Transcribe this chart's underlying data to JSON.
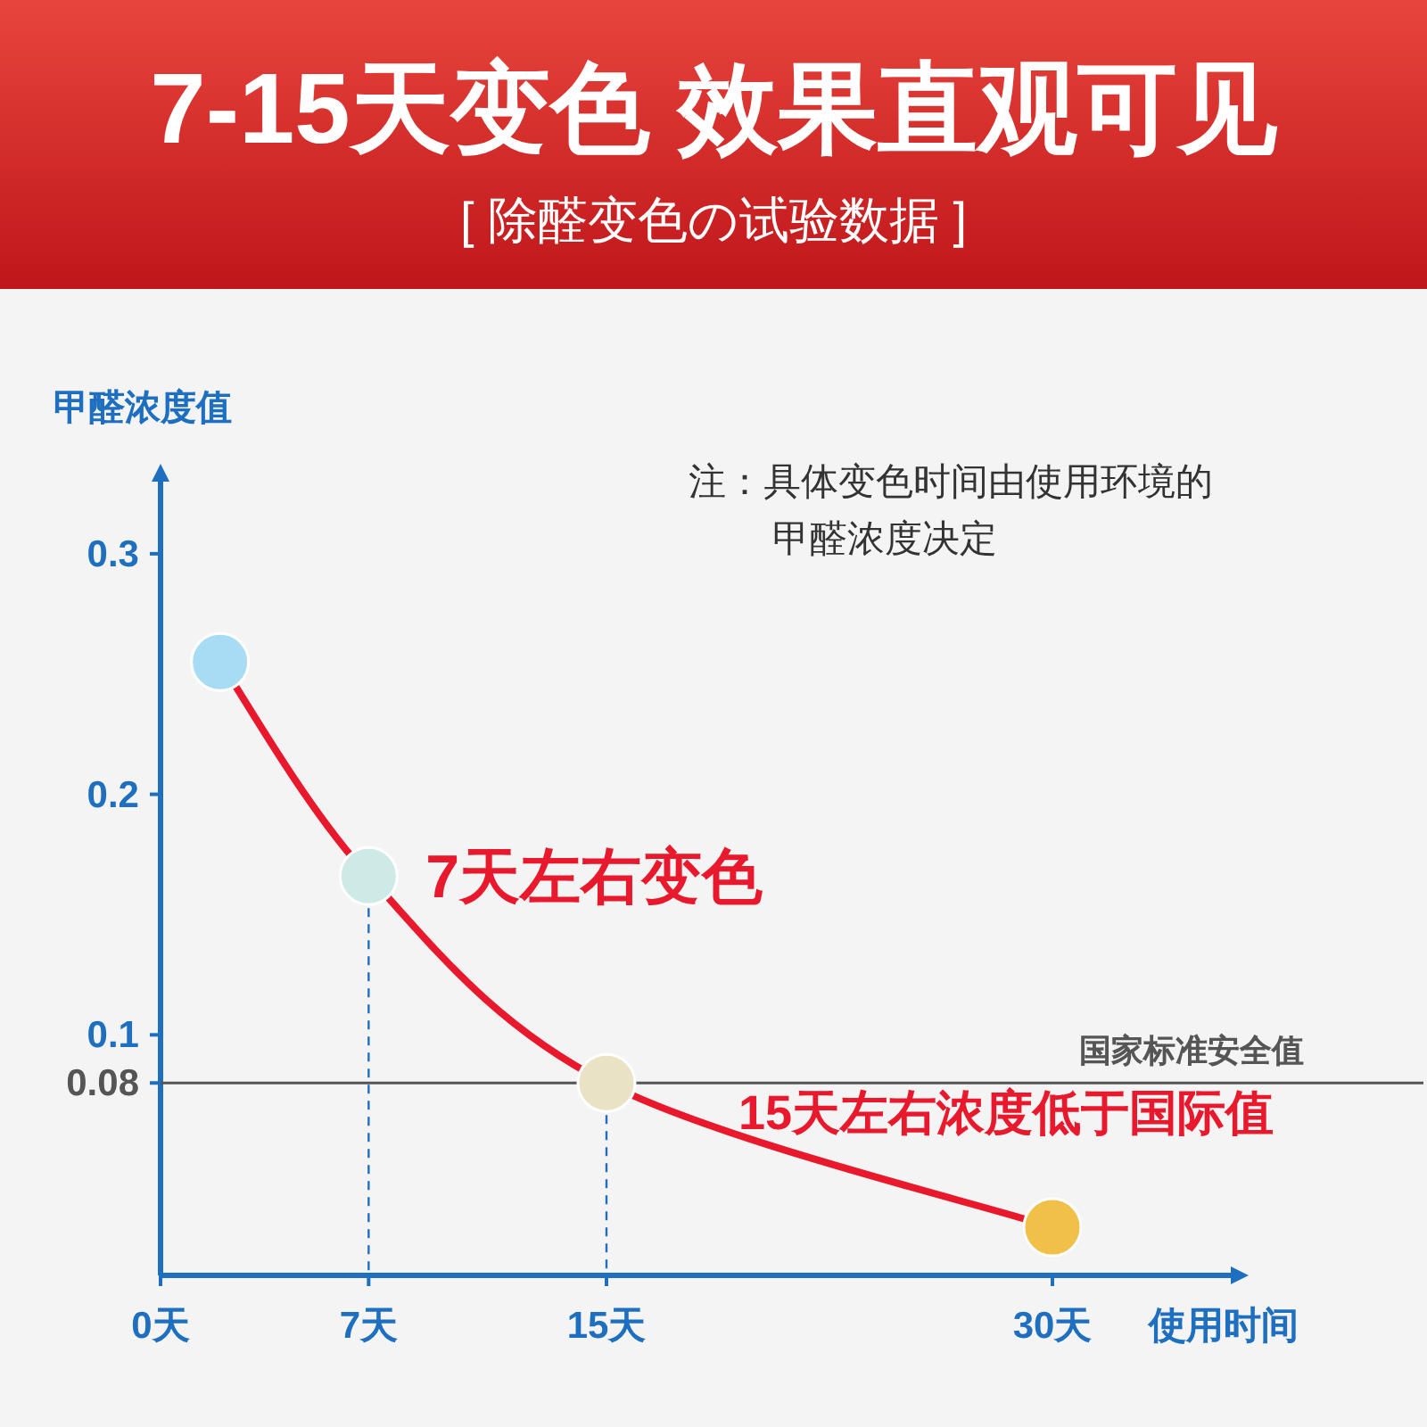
{
  "chart_data": {
    "type": "line",
    "title": "7-15天变色  效果直观可见",
    "subtitle": "[ 除醛变色の试验数据 ]",
    "xlabel": "使用时间",
    "ylabel": "甲醛浓度值",
    "x": [
      2,
      7,
      15,
      30
    ],
    "series": [
      {
        "color": "#e8192c",
        "colors": [
          "#a8dcf5",
          "#cdeae6",
          "#e9e2c4",
          "#f0c048"
        ],
        "values": [
          0.255,
          0.166,
          0.08,
          0.02
        ]
      }
    ],
    "xlim": [
      0,
      36
    ],
    "xticks": [
      {
        "value": 0,
        "label": "0天"
      },
      {
        "value": 7,
        "label": "7天"
      },
      {
        "value": 15,
        "label": "15天"
      },
      {
        "value": 30,
        "label": "30天"
      }
    ],
    "ylim": [
      0,
      0.33
    ],
    "yticks": [
      0.08,
      0.1,
      0.2,
      0.3
    ],
    "ref_lines": [
      {
        "axis": "y",
        "value": 0.08,
        "label": "国家标准安全值",
        "color": "#555555",
        "line_style": "solid"
      },
      {
        "axis": "x",
        "value": 7,
        "color": "#1e6fc0",
        "line_style": "dashed"
      },
      {
        "axis": "x",
        "value": 15,
        "color": "#1e6fc0",
        "line_style": "dashed"
      }
    ],
    "annotations": [
      {
        "text": "7天左右变色",
        "x": 7,
        "y": 0.166
      },
      "15天左右浓度低于国际值",
      "注：具体变色时间由使用环境的甲醛浓度决定"
    ],
    "marker": "circle"
  }
}
